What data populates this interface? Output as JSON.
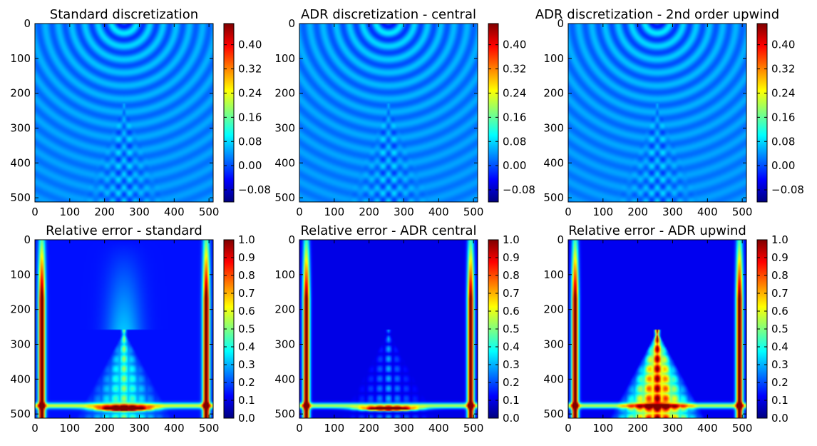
{
  "figure": {
    "colormap": "jet",
    "colormap_colors": [
      "#00007f",
      "#0000ff",
      "#007fff",
      "#00ffff",
      "#7fff7f",
      "#ffff00",
      "#ff7f00",
      "#ff0000",
      "#7f0000"
    ]
  },
  "chart_data": [
    {
      "type": "heatmap",
      "title": "Standard discretization",
      "xticks": [
        "0",
        "100",
        "200",
        "300",
        "400",
        "500"
      ],
      "yticks": [
        "0",
        "100",
        "200",
        "300",
        "400",
        "500"
      ],
      "xlim": [
        0,
        512
      ],
      "ylim": [
        512,
        0
      ],
      "colorbar": {
        "ticks": [
          "0.40",
          "0.32",
          "0.24",
          "0.16",
          "0.08",
          "0.00",
          "−0.08"
        ],
        "tick_values": [
          0.4,
          0.32,
          0.24,
          0.16,
          0.08,
          0.0,
          -0.08
        ],
        "vmin": -0.12,
        "vmax": 0.47
      }
    },
    {
      "type": "heatmap",
      "title": "ADR discretization - central",
      "xticks": [
        "0",
        "100",
        "200",
        "300",
        "400",
        "500"
      ],
      "yticks": [
        "0",
        "100",
        "200",
        "300",
        "400",
        "500"
      ],
      "xlim": [
        0,
        512
      ],
      "ylim": [
        512,
        0
      ],
      "colorbar": {
        "ticks": [
          "0.40",
          "0.32",
          "0.24",
          "0.16",
          "0.08",
          "0.00",
          "−0.08"
        ],
        "tick_values": [
          0.4,
          0.32,
          0.24,
          0.16,
          0.08,
          0.0,
          -0.08
        ],
        "vmin": -0.12,
        "vmax": 0.47
      }
    },
    {
      "type": "heatmap",
      "title": "ADR discretization - 2nd order upwind",
      "xticks": [
        "0",
        "100",
        "200",
        "300",
        "400",
        "500"
      ],
      "yticks": [
        "0",
        "100",
        "200",
        "300",
        "400",
        "500"
      ],
      "xlim": [
        0,
        512
      ],
      "ylim": [
        512,
        0
      ],
      "colorbar": {
        "ticks": [
          "0.40",
          "0.32",
          "0.24",
          "0.16",
          "0.08",
          "0.00",
          "−0.08"
        ],
        "tick_values": [
          0.4,
          0.32,
          0.24,
          0.16,
          0.08,
          0.0,
          -0.08
        ],
        "vmin": -0.12,
        "vmax": 0.47
      }
    },
    {
      "type": "heatmap",
      "title": "Relative error - standard",
      "xticks": [
        "0",
        "100",
        "200",
        "300",
        "400",
        "500"
      ],
      "yticks": [
        "0",
        "100",
        "200",
        "300",
        "400",
        "500"
      ],
      "xlim": [
        0,
        512
      ],
      "ylim": [
        512,
        0
      ],
      "colorbar": {
        "ticks": [
          "1.0",
          "0.9",
          "0.8",
          "0.7",
          "0.6",
          "0.5",
          "0.4",
          "0.3",
          "0.2",
          "0.1",
          "0.0"
        ],
        "tick_values": [
          1.0,
          0.9,
          0.8,
          0.7,
          0.6,
          0.5,
          0.4,
          0.3,
          0.2,
          0.1,
          0.0
        ],
        "vmin": 0.0,
        "vmax": 1.0
      }
    },
    {
      "type": "heatmap",
      "title": "Relative error - ADR central",
      "xticks": [
        "0",
        "100",
        "200",
        "300",
        "400",
        "500"
      ],
      "yticks": [
        "0",
        "100",
        "200",
        "300",
        "400",
        "500"
      ],
      "xlim": [
        0,
        512
      ],
      "ylim": [
        512,
        0
      ],
      "colorbar": {
        "ticks": [
          "1.0",
          "0.9",
          "0.8",
          "0.7",
          "0.6",
          "0.5",
          "0.4",
          "0.3",
          "0.2",
          "0.1",
          "0.0"
        ],
        "tick_values": [
          1.0,
          0.9,
          0.8,
          0.7,
          0.6,
          0.5,
          0.4,
          0.3,
          0.2,
          0.1,
          0.0
        ],
        "vmin": 0.0,
        "vmax": 1.0
      }
    },
    {
      "type": "heatmap",
      "title": "Relative error - ADR upwind",
      "xticks": [
        "0",
        "100",
        "200",
        "300",
        "400",
        "500"
      ],
      "yticks": [
        "0",
        "100",
        "200",
        "300",
        "400",
        "500"
      ],
      "xlim": [
        0,
        512
      ],
      "ylim": [
        512,
        0
      ],
      "colorbar": {
        "ticks": [
          "1.0",
          "0.9",
          "0.8",
          "0.7",
          "0.6",
          "0.5",
          "0.4",
          "0.3",
          "0.2",
          "0.1",
          "0.0"
        ],
        "tick_values": [
          1.0,
          0.9,
          0.8,
          0.7,
          0.6,
          0.5,
          0.4,
          0.3,
          0.2,
          0.1,
          0.0
        ],
        "vmin": 0.0,
        "vmax": 1.0
      }
    }
  ]
}
